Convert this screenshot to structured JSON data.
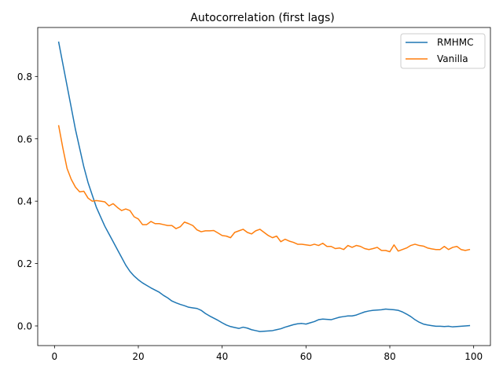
{
  "chart_data": {
    "type": "line",
    "title": "Autocorrelation (first lags)",
    "xlabel": "",
    "ylabel": "",
    "xlim": [
      -4.0,
      104.0
    ],
    "ylim": [
      -0.063,
      0.957
    ],
    "xticks": [
      0,
      20,
      40,
      60,
      80,
      100
    ],
    "yticks": [
      0.0,
      0.2,
      0.4,
      0.6,
      0.8
    ],
    "ytick_labels": [
      "0.0",
      "0.2",
      "0.4",
      "0.6",
      "0.8"
    ],
    "grid": false,
    "legend": "top-right",
    "x": [
      1,
      2,
      3,
      4,
      5,
      6,
      7,
      8,
      9,
      10,
      11,
      12,
      13,
      14,
      15,
      16,
      17,
      18,
      19,
      20,
      21,
      22,
      23,
      24,
      25,
      26,
      27,
      28,
      29,
      30,
      31,
      32,
      33,
      34,
      35,
      36,
      37,
      38,
      39,
      40,
      41,
      42,
      43,
      44,
      45,
      46,
      47,
      48,
      49,
      50,
      51,
      52,
      53,
      54,
      55,
      56,
      57,
      58,
      59,
      60,
      61,
      62,
      63,
      64,
      65,
      66,
      67,
      68,
      69,
      70,
      71,
      72,
      73,
      74,
      75,
      76,
      77,
      78,
      79,
      80,
      81,
      82,
      83,
      84,
      85,
      86,
      87,
      88,
      89,
      90,
      91,
      92,
      93,
      94,
      95,
      96,
      97,
      98,
      99
    ],
    "series": [
      {
        "name": "RMHMC",
        "color": "#1f77b4",
        "values": [
          0.91,
          0.84,
          0.77,
          0.7,
          0.63,
          0.57,
          0.51,
          0.46,
          0.42,
          0.38,
          0.35,
          0.32,
          0.295,
          0.27,
          0.245,
          0.22,
          0.195,
          0.175,
          0.16,
          0.148,
          0.138,
          0.13,
          0.122,
          0.115,
          0.108,
          0.098,
          0.09,
          0.08,
          0.074,
          0.069,
          0.065,
          0.06,
          0.058,
          0.056,
          0.05,
          0.04,
          0.032,
          0.025,
          0.018,
          0.01,
          0.003,
          -0.002,
          -0.005,
          -0.008,
          -0.004,
          -0.007,
          -0.012,
          -0.015,
          -0.018,
          -0.017,
          -0.016,
          -0.015,
          -0.012,
          -0.009,
          -0.004,
          0.0,
          0.004,
          0.007,
          0.008,
          0.006,
          0.01,
          0.014,
          0.02,
          0.022,
          0.021,
          0.02,
          0.024,
          0.028,
          0.03,
          0.032,
          0.032,
          0.035,
          0.04,
          0.045,
          0.048,
          0.05,
          0.051,
          0.052,
          0.054,
          0.053,
          0.052,
          0.05,
          0.045,
          0.038,
          0.03,
          0.02,
          0.012,
          0.006,
          0.003,
          0.001,
          -0.001,
          -0.001,
          -0.002,
          -0.001,
          -0.003,
          -0.002,
          -0.001,
          0.0,
          0.001
        ]
      },
      {
        "name": "Vanilla",
        "color": "#ff7f0e",
        "values": [
          0.642,
          0.57,
          0.505,
          0.47,
          0.445,
          0.43,
          0.432,
          0.41,
          0.4,
          0.402,
          0.4,
          0.398,
          0.385,
          0.392,
          0.38,
          0.37,
          0.375,
          0.37,
          0.35,
          0.343,
          0.325,
          0.325,
          0.335,
          0.328,
          0.328,
          0.325,
          0.322,
          0.322,
          0.312,
          0.318,
          0.333,
          0.328,
          0.322,
          0.308,
          0.302,
          0.305,
          0.305,
          0.306,
          0.298,
          0.29,
          0.288,
          0.283,
          0.3,
          0.305,
          0.31,
          0.3,
          0.295,
          0.305,
          0.31,
          0.3,
          0.29,
          0.283,
          0.288,
          0.27,
          0.278,
          0.272,
          0.268,
          0.262,
          0.262,
          0.26,
          0.258,
          0.262,
          0.258,
          0.265,
          0.255,
          0.255,
          0.248,
          0.25,
          0.245,
          0.258,
          0.252,
          0.258,
          0.255,
          0.248,
          0.245,
          0.248,
          0.252,
          0.242,
          0.242,
          0.238,
          0.26,
          0.24,
          0.245,
          0.25,
          0.258,
          0.262,
          0.258,
          0.256,
          0.25,
          0.247,
          0.245,
          0.245,
          0.255,
          0.245,
          0.252,
          0.255,
          0.245,
          0.242,
          0.245
        ]
      }
    ]
  }
}
